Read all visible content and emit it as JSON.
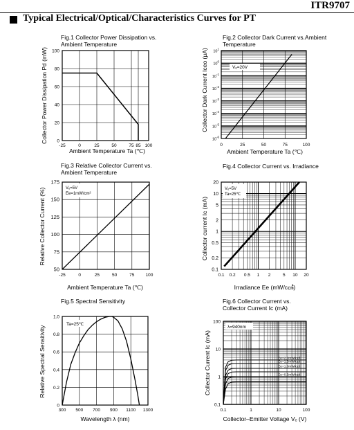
{
  "header": {
    "doc_id": "ITR9707",
    "section_title": "Typical Electrical/Optical/Characteristics Curves for PT"
  },
  "chart_data": [
    {
      "id": "fig1",
      "type": "line",
      "title_lines": [
        "Fig.1 Collector Power Dissipation vs.",
        "Ambient Temperature"
      ],
      "xlabel": "Ambient Temperature Ta (℃)",
      "ylabel": "Collector Power Dissipation Pd (mW)",
      "x_ticks": [
        "-25",
        "0",
        "25",
        "50",
        "75",
        "85",
        "100"
      ],
      "y_ticks": [
        "0",
        "20",
        "40",
        "60",
        "80",
        "100"
      ],
      "xlim": [
        -25,
        100
      ],
      "ylim": [
        0,
        100
      ],
      "grid": true,
      "series": [
        {
          "x": [
            -25,
            25,
            85,
            85
          ],
          "y": [
            75,
            75,
            18,
            0
          ]
        }
      ]
    },
    {
      "id": "fig2",
      "type": "line",
      "title_lines": [
        "Fig.2 Collector Dark Current vs.Ambient",
        "Temperature"
      ],
      "xlabel": "Ambient Temperature Ta (℃)",
      "ylabel": "Collector Dark Current Iceo (μA)",
      "annotation": "Vₑ=20V",
      "x_ticks": [
        "0",
        "25",
        "50",
        "75",
        "100"
      ],
      "xlim": [
        0,
        100
      ],
      "y_log": true,
      "ylim": [
        1e-06,
        10
      ],
      "grid": true,
      "series": [
        {
          "x": [
            5,
            83
          ],
          "y": [
            1e-06,
            5
          ]
        }
      ]
    },
    {
      "id": "fig3",
      "type": "line",
      "title_lines": [
        "Fig.3 Relative Collector Current vs.",
        "Ambient Temperature"
      ],
      "xlabel": "Ambient Temperature Ta (℃)",
      "ylabel": "Relative Collector Current (%)",
      "annotation_lines": [
        "Vₑ=5V",
        "Ee=1mW/cm²"
      ],
      "x_ticks": [
        "-25",
        "0",
        "25",
        "50",
        "75",
        "100"
      ],
      "y_ticks": [
        "50",
        "75",
        "100",
        "125",
        "150",
        "175"
      ],
      "xlim": [
        -25,
        100
      ],
      "ylim": [
        50,
        175
      ],
      "grid": true,
      "series": [
        {
          "x": [
            -25,
            100
          ],
          "y": [
            50,
            172
          ]
        }
      ]
    },
    {
      "id": "fig4",
      "type": "line",
      "title_lines": [
        "Fig.4  Collector Current vs. Irradiance"
      ],
      "xlabel": "Irradiance Ee (mW/c㎠)",
      "ylabel": "Collector current Ic (mA)",
      "annotation_lines": [
        "Vₑ=5V",
        "Ta=25℃"
      ],
      "x_log": true,
      "y_log": true,
      "xlim": [
        0.1,
        20
      ],
      "ylim": [
        0.1,
        20
      ],
      "x_ticks": [
        "0.1",
        "0.2",
        "0.5",
        "1",
        "2",
        "5",
        "10",
        "20"
      ],
      "y_ticks": [
        "0.1",
        "0.2",
        "0.5",
        "1",
        "2",
        "5",
        "10",
        "20"
      ],
      "grid": true,
      "series": [
        {
          "x": [
            0.12,
            13
          ],
          "y": [
            0.12,
            20
          ]
        }
      ]
    },
    {
      "id": "fig5",
      "type": "line",
      "title_lines": [
        "Fig.5 Spectral Sensitivity"
      ],
      "xlabel": "Wavelength λ (nm)",
      "ylabel": "Relative Spectral Sensitivity",
      "annotation": "Ta=25℃",
      "x_ticks": [
        "300",
        "500",
        "700",
        "900",
        "1100",
        "1300"
      ],
      "y_ticks": [
        "0",
        "0.2",
        "0.4",
        "0.6",
        "0.8",
        "1.0"
      ],
      "xlim": [
        300,
        1300
      ],
      "ylim": [
        0,
        1.0
      ],
      "grid": true,
      "series": [
        {
          "x": [
            300,
            350,
            400,
            450,
            500,
            550,
            600,
            650,
            700,
            750,
            800,
            850,
            880,
            900,
            950,
            1000,
            1050,
            1100,
            1150,
            1180,
            1200
          ],
          "y": [
            0.0,
            0.26,
            0.46,
            0.59,
            0.7,
            0.78,
            0.85,
            0.9,
            0.94,
            0.97,
            0.99,
            1.0,
            1.0,
            0.99,
            0.95,
            0.86,
            0.72,
            0.52,
            0.28,
            0.12,
            0.0
          ]
        }
      ]
    },
    {
      "id": "fig6",
      "type": "line",
      "title_lines": [
        "Fig.6 Collector Current vs.",
        "Collector Current Ic (mA)"
      ],
      "xlabel": "Collector–Emitter Voltage Vₑ (V)",
      "ylabel": "Collector Current Ic (mA)",
      "annotation": "λ=940nm",
      "x_log": true,
      "y_log": true,
      "xlim": [
        0.1,
        100
      ],
      "ylim": [
        0.1,
        100
      ],
      "x_ticks": [
        "0.1",
        "1",
        "10",
        "100"
      ],
      "y_ticks": [
        "0.1",
        "1",
        "10",
        "100"
      ],
      "grid": true,
      "series": [
        {
          "name": "Ee=2.0mW/c㎠",
          "level": 4.0
        },
        {
          "name": "Ee=1.5mW/c㎠",
          "level": 3.0
        },
        {
          "name": "Ee=1.0mW/c㎠",
          "level": 2.0
        },
        {
          "name": "",
          "level": 1.5
        },
        {
          "name": "Ee=0.5mW/c㎠",
          "level": 1.0
        },
        {
          "name": "",
          "level": 0.65
        }
      ]
    }
  ]
}
